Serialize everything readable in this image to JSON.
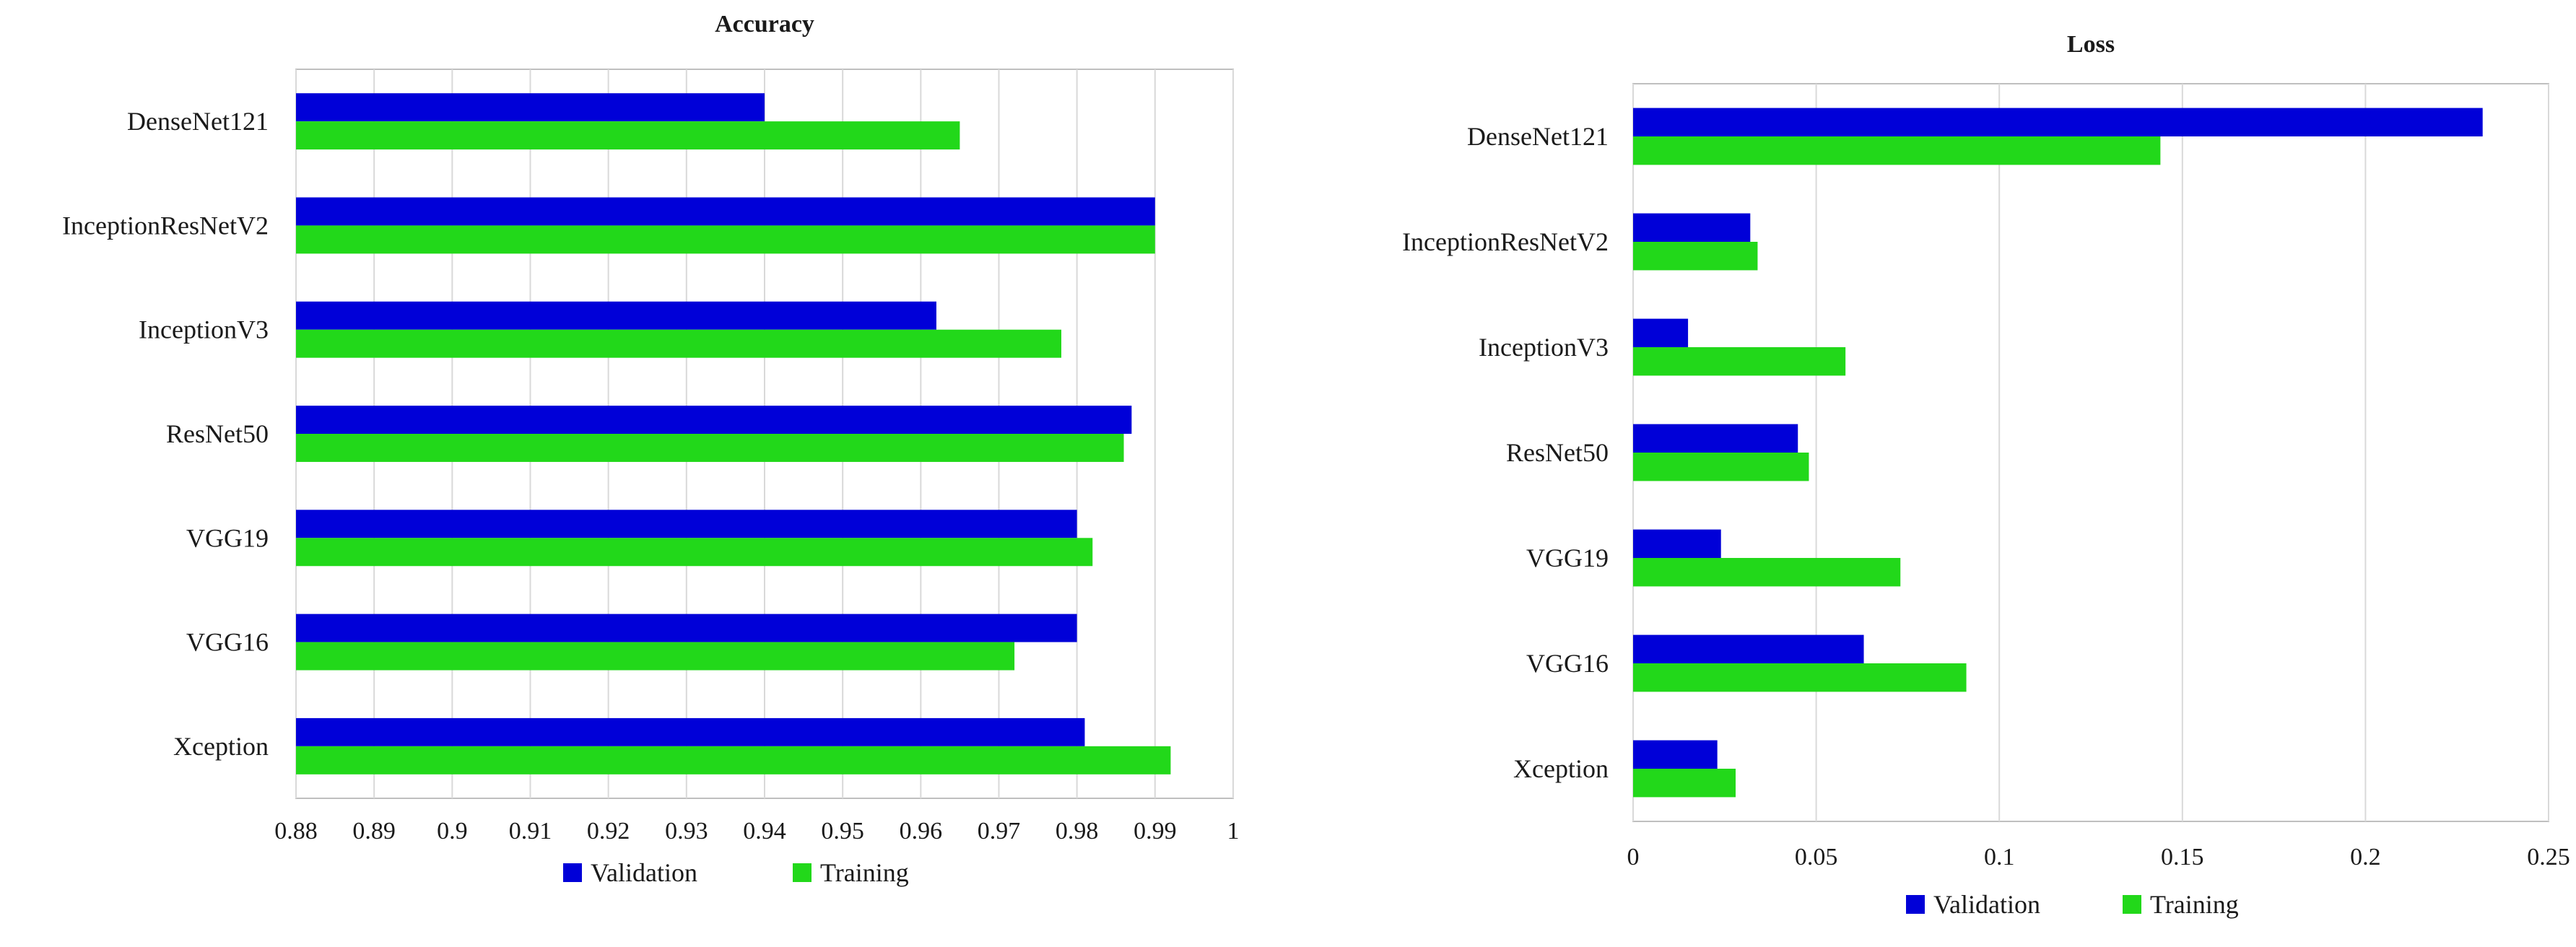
{
  "colors": {
    "validation": "#0000d8",
    "training": "#22d81a",
    "grid": "#d9d9d9",
    "frame": "#bfbfbf"
  },
  "chart_data": [
    {
      "type": "bar",
      "orientation": "horizontal",
      "title": "Accuracy",
      "categories": [
        "DenseNet121",
        "InceptionResNetV2",
        "InceptionV3",
        "ResNet50",
        "VGG19",
        "VGG16",
        "Xception"
      ],
      "series": [
        {
          "name": "Validation",
          "values": [
            0.94,
            0.99,
            0.962,
            0.987,
            0.98,
            0.98,
            0.981
          ]
        },
        {
          "name": "Training",
          "values": [
            0.965,
            0.99,
            0.978,
            0.986,
            0.982,
            0.972,
            0.992
          ]
        }
      ],
      "xlim": [
        0.88,
        1.0
      ],
      "xticks": [
        0.88,
        0.89,
        0.9,
        0.91,
        0.92,
        0.93,
        0.94,
        0.95,
        0.96,
        0.97,
        0.98,
        0.99,
        1
      ],
      "xtick_labels": [
        "0.88",
        "0.89",
        "0.9",
        "0.91",
        "0.92",
        "0.93",
        "0.94",
        "0.95",
        "0.96",
        "0.97",
        "0.98",
        "0.99",
        "1"
      ],
      "grid": true,
      "legend": "bottom-center"
    },
    {
      "type": "bar",
      "orientation": "horizontal",
      "title": "Loss",
      "categories": [
        "DenseNet121",
        "InceptionResNetV2",
        "InceptionV3",
        "ResNet50",
        "VGG19",
        "VGG16",
        "Xception"
      ],
      "series": [
        {
          "name": "Validation",
          "values": [
            0.232,
            0.032,
            0.015,
            0.045,
            0.024,
            0.063,
            0.023
          ]
        },
        {
          "name": "Training",
          "values": [
            0.144,
            0.034,
            0.058,
            0.048,
            0.073,
            0.091,
            0.028
          ]
        }
      ],
      "xlim": [
        0,
        0.25
      ],
      "xticks": [
        0,
        0.05,
        0.1,
        0.15,
        0.2,
        0.25
      ],
      "xtick_labels": [
        "0",
        "0.05",
        "0.1",
        "0.15",
        "0.2",
        "0.25"
      ],
      "grid": true,
      "legend": "bottom-center"
    }
  ]
}
